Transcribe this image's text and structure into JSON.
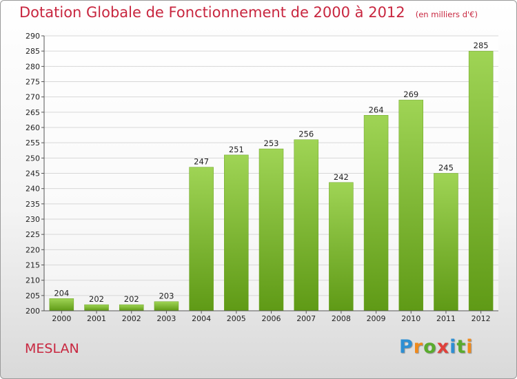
{
  "header": {
    "title": "Dotation Globale de Fonctionnement de 2000 à 2012",
    "unit": "(en milliers d'€)"
  },
  "commune": "MESLAN",
  "brand": {
    "text": "Proxiti",
    "letter_colors": [
      "#2e8fd3",
      "#f08a1c",
      "#5aab2e",
      "#e0403a",
      "#2e8fd3",
      "#5aab2e",
      "#f08a1c"
    ]
  },
  "colors": {
    "bar_top": "#9fd455",
    "bar_bottom": "#5f9a16",
    "grid": "#d7d7d7",
    "axis": "#555555",
    "title": "#c8263f"
  },
  "chart_data": {
    "type": "bar",
    "title": "Dotation Globale de Fonctionnement de 2000 à 2012",
    "subtitle": "(en milliers d'€)",
    "categories": [
      "2000",
      "2001",
      "2002",
      "2003",
      "2004",
      "2005",
      "2006",
      "2007",
      "2008",
      "2009",
      "2010",
      "2011",
      "2012"
    ],
    "values": [
      204,
      202,
      202,
      203,
      247,
      251,
      253,
      256,
      242,
      264,
      269,
      245,
      285
    ],
    "ylim": [
      200,
      290
    ],
    "yticks": [
      200,
      205,
      210,
      215,
      220,
      225,
      230,
      235,
      240,
      245,
      250,
      255,
      260,
      265,
      270,
      275,
      280,
      285,
      290
    ],
    "grid": true,
    "xlabel": "",
    "ylabel": ""
  }
}
